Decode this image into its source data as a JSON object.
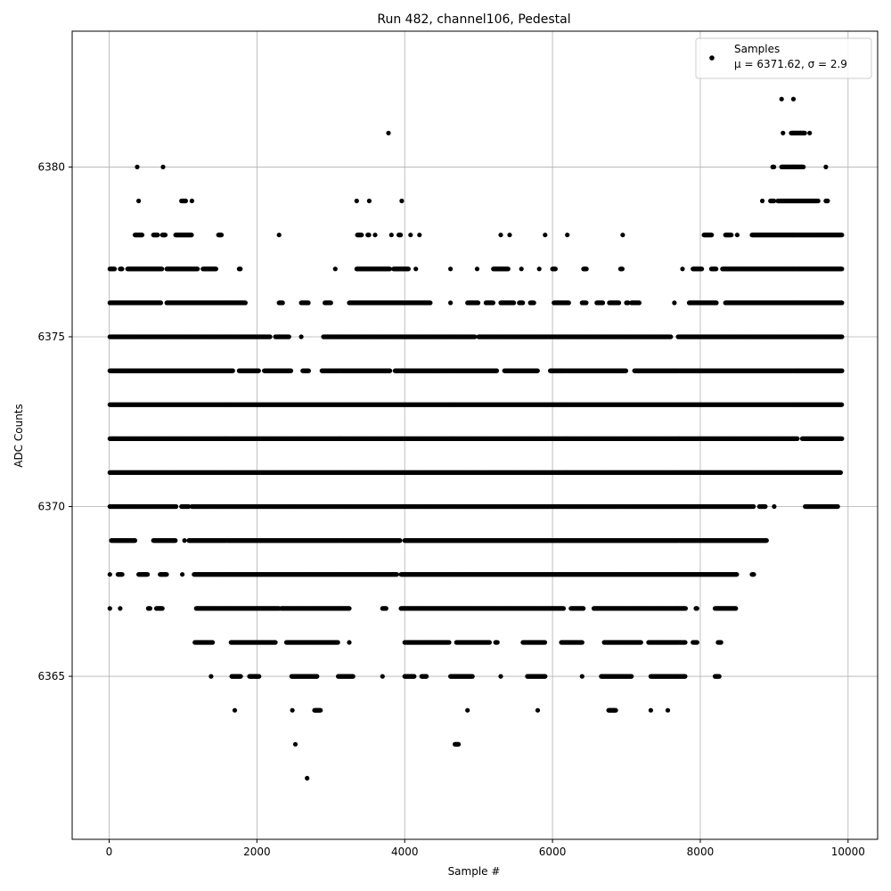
{
  "chart_data": {
    "type": "scatter",
    "title": "Run 482, channel106, Pedestal",
    "xlabel": "Sample #",
    "ylabel": "ADC Counts",
    "xlim": [
      -500,
      10400
    ],
    "ylim": [
      6360.2,
      6384
    ],
    "xticks": [
      0,
      2000,
      4000,
      6000,
      8000,
      10000
    ],
    "yticks": [
      6365,
      6370,
      6375,
      6380
    ],
    "grid": true,
    "legend": {
      "placement": "top-right",
      "series_name": "Samples",
      "stats_text": "μ = 6371.62, σ = 2.9"
    },
    "marker_color": "#000000",
    "sample_count": 10000,
    "level_ranges": [
      {
        "y": 6362,
        "segments": [
          [
            2680,
            2680
          ]
        ]
      },
      {
        "y": 6363,
        "segments": [
          [
            2520,
            2520
          ],
          [
            4680,
            4730
          ]
        ]
      },
      {
        "y": 6364,
        "segments": [
          [
            1700,
            1700
          ],
          [
            2480,
            2480
          ],
          [
            2780,
            2860
          ],
          [
            4850,
            4850
          ],
          [
            5800,
            5800
          ],
          [
            6760,
            6860
          ],
          [
            7330,
            7330
          ],
          [
            7560,
            7560
          ]
        ]
      },
      {
        "y": 6365,
        "segments": [
          [
            1380,
            1380
          ],
          [
            1660,
            1780
          ],
          [
            1900,
            2030
          ],
          [
            2470,
            2820
          ],
          [
            3100,
            3300
          ],
          [
            3700,
            3700
          ],
          [
            4000,
            4130
          ],
          [
            4230,
            4300
          ],
          [
            4620,
            4920
          ],
          [
            5300,
            5300
          ],
          [
            5660,
            5900
          ],
          [
            6400,
            6400
          ],
          [
            6660,
            7070
          ],
          [
            7330,
            7800
          ],
          [
            8200,
            8260
          ]
        ]
      },
      {
        "y": 6366,
        "segments": [
          [
            1160,
            1400
          ],
          [
            1650,
            2250
          ],
          [
            2400,
            3100
          ],
          [
            3250,
            3250
          ],
          [
            4000,
            4600
          ],
          [
            4700,
            5150
          ],
          [
            5230,
            5260
          ],
          [
            5600,
            5900
          ],
          [
            6120,
            6400
          ],
          [
            6700,
            7200
          ],
          [
            7300,
            7800
          ],
          [
            7900,
            7960
          ],
          [
            8240,
            8280
          ]
        ]
      },
      {
        "y": 6367,
        "segments": [
          [
            10,
            10
          ],
          [
            150,
            150
          ],
          [
            530,
            560
          ],
          [
            640,
            720
          ],
          [
            1180,
            2300
          ],
          [
            2330,
            3250
          ],
          [
            3700,
            3750
          ],
          [
            3950,
            6150
          ],
          [
            6250,
            6420
          ],
          [
            6560,
            7800
          ],
          [
            7940,
            7960
          ],
          [
            8200,
            8480
          ]
        ]
      },
      {
        "y": 6368,
        "segments": [
          [
            10,
            10
          ],
          [
            120,
            180
          ],
          [
            400,
            520
          ],
          [
            690,
            780
          ],
          [
            990,
            990
          ],
          [
            1150,
            3900
          ],
          [
            3950,
            8500
          ],
          [
            8700,
            8730
          ]
        ]
      },
      {
        "y": 6369,
        "segments": [
          [
            30,
            350
          ],
          [
            600,
            900
          ],
          [
            1020,
            1020
          ],
          [
            1080,
            3940
          ],
          [
            4000,
            8900
          ]
        ]
      },
      {
        "y": 6370,
        "segments": [
          [
            10,
            910
          ],
          [
            980,
            1080
          ],
          [
            1120,
            8720
          ],
          [
            8800,
            8880
          ],
          [
            9000,
            9000
          ],
          [
            9420,
            9860
          ]
        ]
      },
      {
        "y": 6371,
        "segments": [
          [
            10,
            9900
          ]
        ]
      },
      {
        "y": 6372,
        "segments": [
          [
            10,
            9320
          ],
          [
            9380,
            9920
          ]
        ]
      },
      {
        "y": 6373,
        "segments": [
          [
            10,
            9920
          ]
        ]
      },
      {
        "y": 6374,
        "segments": [
          [
            10,
            1680
          ],
          [
            1760,
            2030
          ],
          [
            2100,
            2460
          ],
          [
            2620,
            2700
          ],
          [
            2880,
            3800
          ],
          [
            3870,
            5250
          ],
          [
            5350,
            5800
          ],
          [
            5970,
            7000
          ],
          [
            7110,
            9920
          ]
        ]
      },
      {
        "y": 6375,
        "segments": [
          [
            10,
            2180
          ],
          [
            2250,
            2440
          ],
          [
            2600,
            2600
          ],
          [
            2900,
            4950
          ],
          [
            5000,
            7600
          ],
          [
            7700,
            9920
          ]
        ]
      },
      {
        "y": 6376,
        "segments": [
          [
            10,
            700
          ],
          [
            780,
            1850
          ],
          [
            2300,
            2350
          ],
          [
            2600,
            2700
          ],
          [
            2920,
            3000
          ],
          [
            3250,
            4350
          ],
          [
            4620,
            4620
          ],
          [
            4850,
            5000
          ],
          [
            5100,
            5200
          ],
          [
            5300,
            5480
          ],
          [
            5550,
            5600
          ],
          [
            5700,
            5750
          ],
          [
            6020,
            6220
          ],
          [
            6400,
            6460
          ],
          [
            6600,
            6680
          ],
          [
            6770,
            6900
          ],
          [
            7000,
            7030
          ],
          [
            7070,
            7180
          ],
          [
            7650,
            7650
          ],
          [
            7850,
            8220
          ],
          [
            8340,
            9920
          ]
        ]
      },
      {
        "y": 6377,
        "segments": [
          [
            10,
            80
          ],
          [
            150,
            180
          ],
          [
            250,
            720
          ],
          [
            780,
            1200
          ],
          [
            1270,
            1450
          ],
          [
            1760,
            1780
          ],
          [
            3060,
            3060
          ],
          [
            3350,
            3800
          ],
          [
            3850,
            4050
          ],
          [
            4150,
            4150
          ],
          [
            4620,
            4620
          ],
          [
            4980,
            4980
          ],
          [
            5200,
            5400
          ],
          [
            5580,
            5580
          ],
          [
            5820,
            5820
          ],
          [
            6000,
            6040
          ],
          [
            6420,
            6460
          ],
          [
            6920,
            6950
          ],
          [
            7760,
            7760
          ],
          [
            7900,
            8020
          ],
          [
            8150,
            8220
          ],
          [
            8300,
            9920
          ]
        ]
      },
      {
        "y": 6378,
        "segments": [
          [
            350,
            450
          ],
          [
            600,
            660
          ],
          [
            720,
            760
          ],
          [
            900,
            1120
          ],
          [
            1480,
            1520
          ],
          [
            2300,
            2300
          ],
          [
            3360,
            3420
          ],
          [
            3500,
            3520
          ],
          [
            3600,
            3600
          ],
          [
            3820,
            3820
          ],
          [
            3920,
            3950
          ],
          [
            4080,
            4080
          ],
          [
            4200,
            4200
          ],
          [
            5300,
            5300
          ],
          [
            5420,
            5420
          ],
          [
            5900,
            5900
          ],
          [
            6200,
            6200
          ],
          [
            6950,
            6950
          ],
          [
            8050,
            8160
          ],
          [
            8340,
            8420
          ],
          [
            8500,
            8500
          ],
          [
            8700,
            9920
          ]
        ]
      },
      {
        "y": 6379,
        "segments": [
          [
            400,
            400
          ],
          [
            980,
            1040
          ],
          [
            1120,
            1120
          ],
          [
            3350,
            3350
          ],
          [
            3520,
            3520
          ],
          [
            3960,
            3960
          ],
          [
            8840,
            8840
          ],
          [
            8950,
            9000
          ],
          [
            9050,
            9600
          ],
          [
            9700,
            9730
          ]
        ]
      },
      {
        "y": 6380,
        "segments": [
          [
            380,
            380
          ],
          [
            730,
            730
          ],
          [
            8980,
            9000
          ],
          [
            9100,
            9400
          ],
          [
            9700,
            9700
          ]
        ]
      },
      {
        "y": 6381,
        "segments": [
          [
            3780,
            3780
          ],
          [
            9120,
            9120
          ],
          [
            9230,
            9420
          ],
          [
            9480,
            9480
          ]
        ]
      },
      {
        "y": 6382,
        "segments": [
          [
            9100,
            9100
          ],
          [
            9260,
            9260
          ]
        ]
      }
    ]
  }
}
